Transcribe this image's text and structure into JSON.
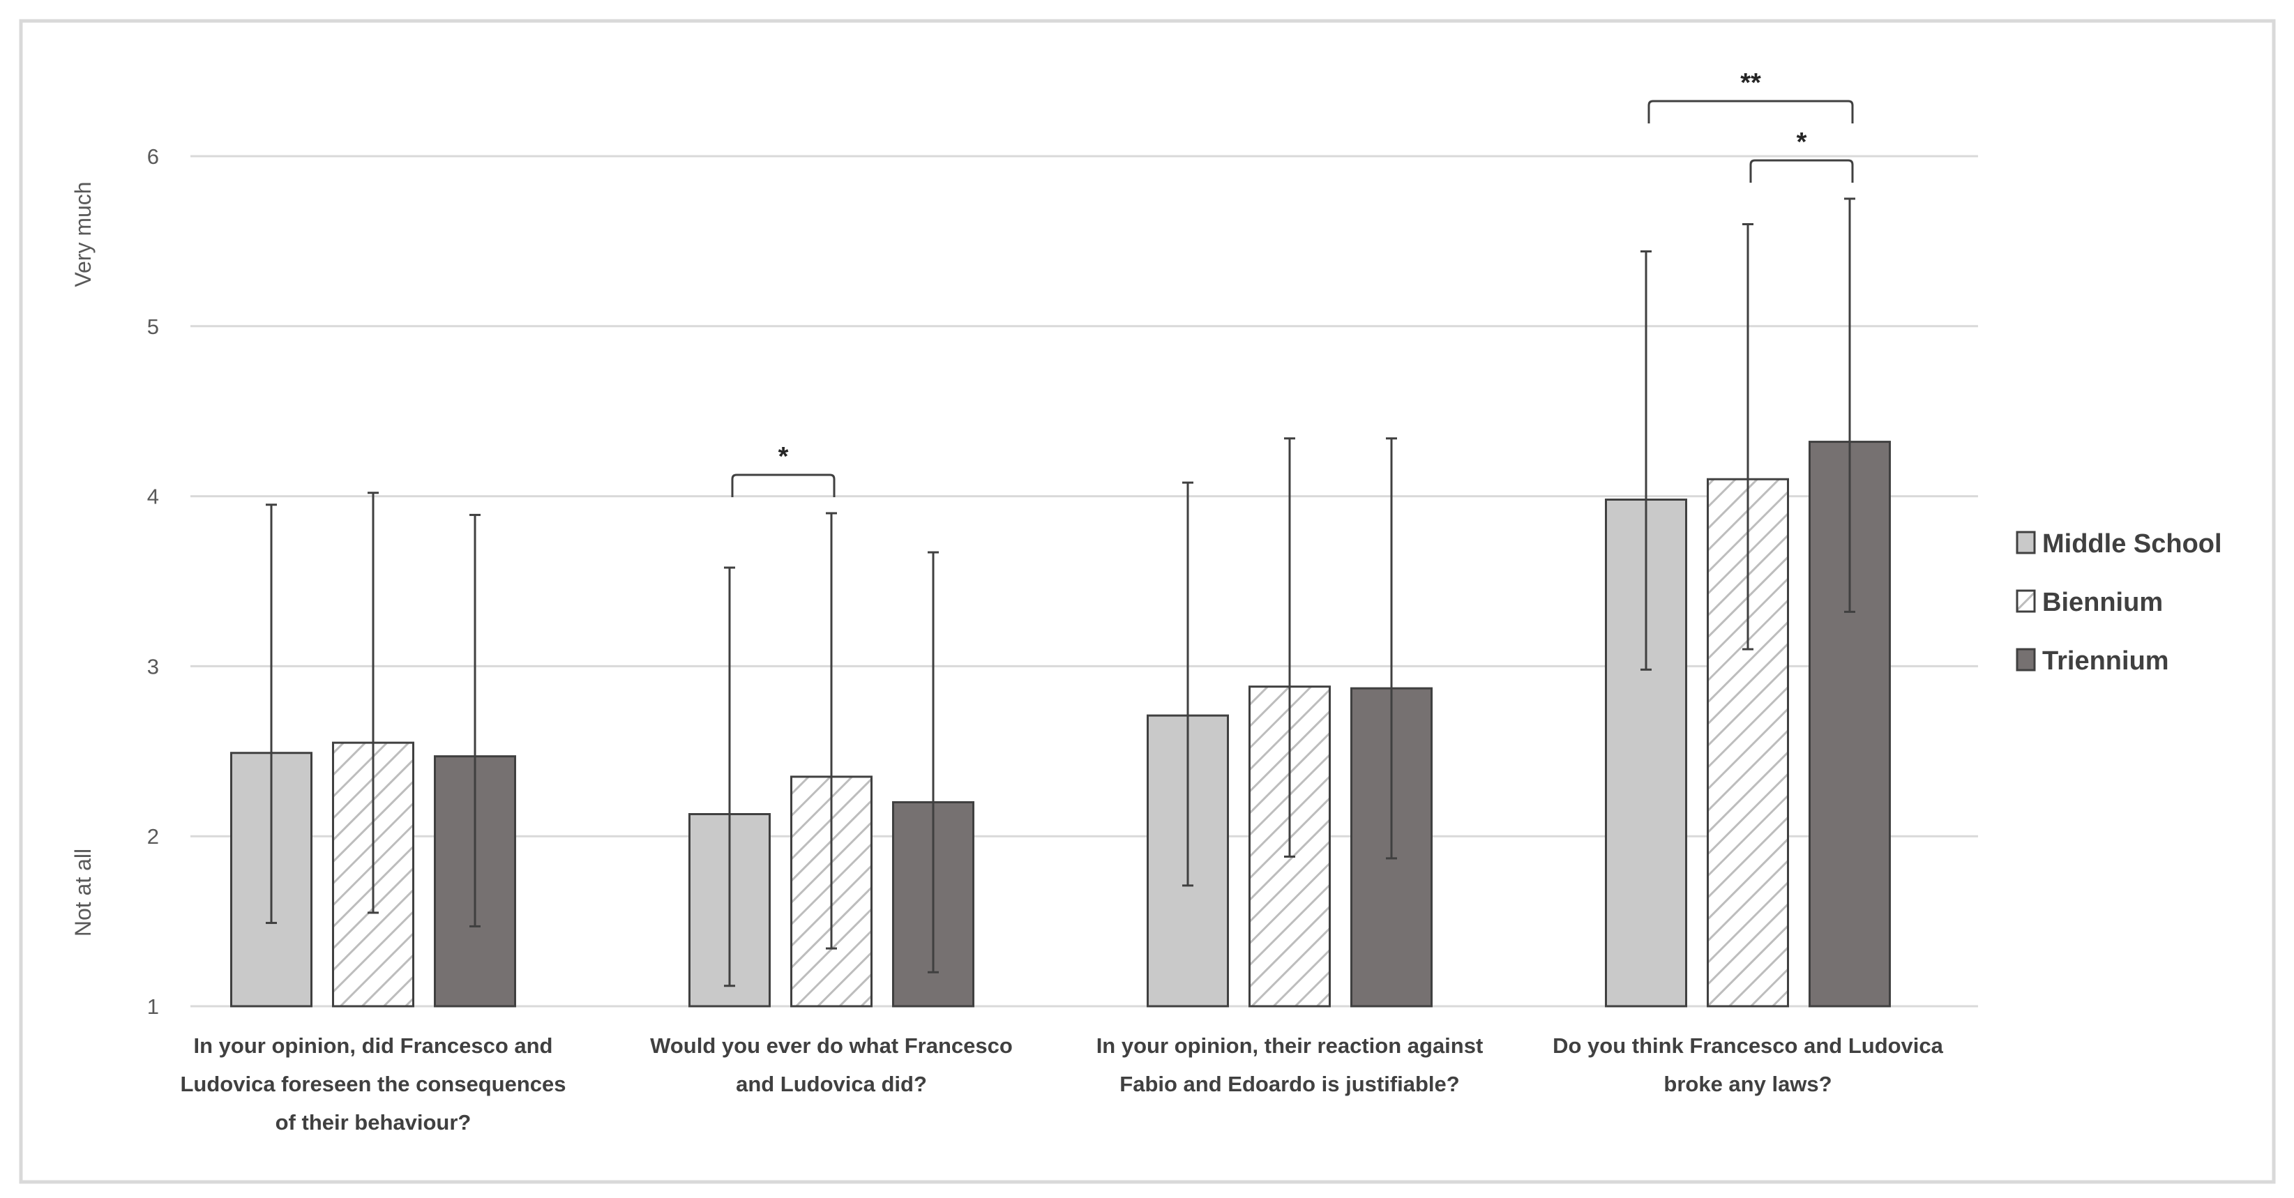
{
  "chart_data": {
    "type": "bar",
    "ylabel_top": "Very much",
    "ylabel_bottom": "Not at all",
    "ylim": [
      1,
      6
    ],
    "yticks": [
      1,
      2,
      3,
      4,
      5,
      6
    ],
    "grid": true,
    "legend_position": "right",
    "categories": [
      [
        "In your opinion, did Francesco and",
        "Ludovica foreseen the consequences",
        "of their behaviour?"
      ],
      [
        "Would you ever do what Francesco",
        "and Ludovica did?"
      ],
      [
        "In your opinion, their reaction against",
        "Fabio and Edoardo is justifiable?"
      ],
      [
        "Do you think Francesco and Ludovica",
        "broke any laws?"
      ]
    ],
    "series": [
      {
        "name": "Middle School",
        "color": "#c9c9c9",
        "pattern": "solid",
        "values": [
          2.49,
          2.13,
          2.71,
          3.98
        ],
        "error_low": [
          1.49,
          1.12,
          1.71,
          2.98
        ],
        "error_high": [
          3.95,
          3.58,
          4.08,
          5.44
        ]
      },
      {
        "name": "Biennium",
        "color": "#ffffff",
        "pattern": "diagonal-hatch",
        "values": [
          2.55,
          2.35,
          2.88,
          4.1
        ],
        "error_low": [
          1.55,
          1.34,
          1.88,
          3.1
        ],
        "error_high": [
          4.02,
          3.9,
          4.34,
          5.6
        ]
      },
      {
        "name": "Triennium",
        "color": "#767171",
        "pattern": "solid",
        "values": [
          2.47,
          2.2,
          2.87,
          4.32
        ],
        "error_low": [
          1.47,
          1.2,
          1.87,
          3.32
        ],
        "error_high": [
          3.89,
          3.67,
          4.34,
          5.75
        ]
      }
    ],
    "significance": [
      {
        "category": 1,
        "from": 0,
        "to": 1,
        "label": "*"
      },
      {
        "category": 3,
        "from": 0,
        "to": 2,
        "label": "**"
      },
      {
        "category": 3,
        "from": 1,
        "to": 2,
        "label": "*"
      }
    ]
  }
}
